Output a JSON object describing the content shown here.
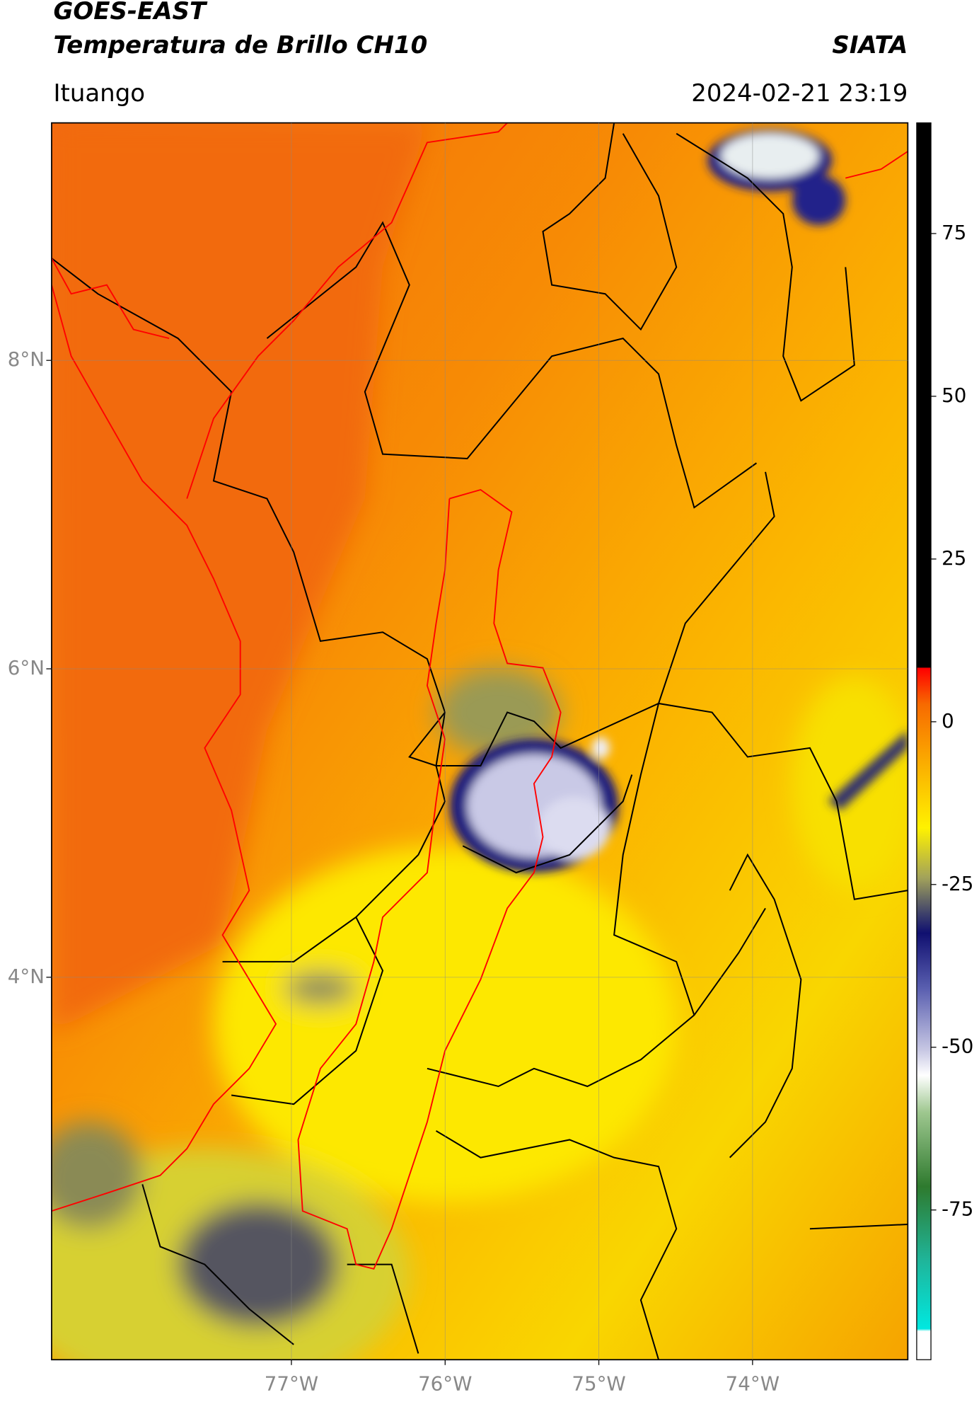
{
  "header": {
    "title": "GOES-EAST",
    "subtitle": "Temperatura de Brillo CH10",
    "source": "SIATA",
    "location": "Ituango",
    "datetime": "2024-02-21 23:19"
  },
  "map": {
    "lonlim": [
      -78.56,
      -72.99
    ],
    "latlim": [
      1.52,
      9.54
    ],
    "lonticks": [
      {
        "value": -77,
        "label": "77°W"
      },
      {
        "value": -76,
        "label": "76°W"
      },
      {
        "value": -75,
        "label": "75°W"
      },
      {
        "value": -74,
        "label": "74°W"
      }
    ],
    "latticks": [
      {
        "value": 8,
        "label": "8°N"
      },
      {
        "value": 6,
        "label": "6°N"
      },
      {
        "value": 4,
        "label": "4°N"
      }
    ]
  },
  "colorbar": {
    "range": [
      -98,
      92
    ],
    "ticks": [
      75,
      50,
      25,
      0,
      -25,
      -50,
      -75
    ]
  }
}
